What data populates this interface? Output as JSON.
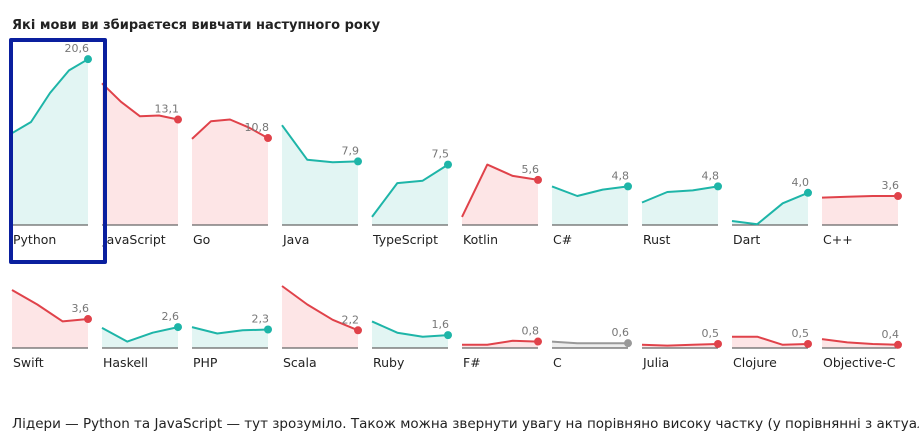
{
  "title": "Які мови ви збираєтеся вивчати наступного року",
  "footer_text": "Лідери — Python та JavaScript — тут зрозуміло. Також можна звернути увагу на порівняно високу частку (у порівнянні з актуальним",
  "colors": {
    "up": "#1eb5a8",
    "down": "#e0424a",
    "flat": "#999999",
    "highlight": "#0a1f9e"
  },
  "chart_data": {
    "type": "line",
    "title": "Які мови ви збираєтеся вивчати наступного року",
    "ylim": [
      0,
      21
    ],
    "series": [
      {
        "name": "Python",
        "trend": "up",
        "values": [
          11.4,
          12.8,
          16.4,
          19.2,
          20.6
        ],
        "label": "20,6"
      },
      {
        "name": "JavaScript",
        "trend": "down",
        "values": [
          17.6,
          15.3,
          13.5,
          13.6,
          13.1
        ],
        "label": "13,1"
      },
      {
        "name": "Go",
        "trend": "down",
        "values": [
          10.7,
          12.9,
          13.1,
          12.1,
          10.8
        ],
        "label": "10,8"
      },
      {
        "name": "Java",
        "trend": "up",
        "values": [
          12.4,
          8.1,
          7.8,
          7.9
        ],
        "label": "7,9"
      },
      {
        "name": "TypeScript",
        "trend": "up",
        "values": [
          1.0,
          5.2,
          5.5,
          7.5
        ],
        "label": "7,5"
      },
      {
        "name": "Kotlin",
        "trend": "down",
        "values": [
          1.0,
          7.5,
          6.1,
          5.6
        ],
        "label": "5,6"
      },
      {
        "name": "C#",
        "trend": "up",
        "values": [
          4.8,
          3.6,
          4.4,
          4.8
        ],
        "label": "4,8"
      },
      {
        "name": "Rust",
        "trend": "up",
        "values": [
          2.8,
          4.1,
          4.3,
          4.8
        ],
        "label": "4,8"
      },
      {
        "name": "Dart",
        "trend": "up",
        "values": [
          0.5,
          0.1,
          2.7,
          4.0
        ],
        "label": "4,0"
      },
      {
        "name": "C++",
        "trend": "down",
        "values": [
          3.4,
          3.5,
          3.6,
          3.6
        ],
        "label": "3,6"
      },
      {
        "name": "Swift",
        "trend": "down",
        "values": [
          7.2,
          5.4,
          3.3,
          3.6
        ],
        "label": "3,6"
      },
      {
        "name": "Haskell",
        "trend": "up",
        "values": [
          2.5,
          0.8,
          1.9,
          2.6
        ],
        "label": "2,6"
      },
      {
        "name": "PHP",
        "trend": "up",
        "values": [
          2.6,
          1.8,
          2.2,
          2.3
        ],
        "label": "2,3"
      },
      {
        "name": "Scala",
        "trend": "down",
        "values": [
          7.7,
          5.4,
          3.5,
          2.2
        ],
        "label": "2,2"
      },
      {
        "name": "Ruby",
        "trend": "up",
        "values": [
          3.3,
          1.9,
          1.4,
          1.6
        ],
        "label": "1,6"
      },
      {
        "name": "F#",
        "trend": "down",
        "values": [
          0.4,
          0.4,
          0.9,
          0.8
        ],
        "label": "0,8"
      },
      {
        "name": "C",
        "trend": "flat",
        "values": [
          0.8,
          0.6,
          0.6,
          0.6
        ],
        "label": "0,6"
      },
      {
        "name": "Julia",
        "trend": "down",
        "values": [
          0.4,
          0.3,
          0.4,
          0.5
        ],
        "label": "0,5"
      },
      {
        "name": "Clojure",
        "trend": "down",
        "values": [
          1.4,
          1.4,
          0.4,
          0.5
        ],
        "label": "0,5"
      },
      {
        "name": "Objective-C",
        "trend": "down",
        "values": [
          1.1,
          0.7,
          0.5,
          0.4
        ],
        "label": "0,4"
      }
    ]
  }
}
